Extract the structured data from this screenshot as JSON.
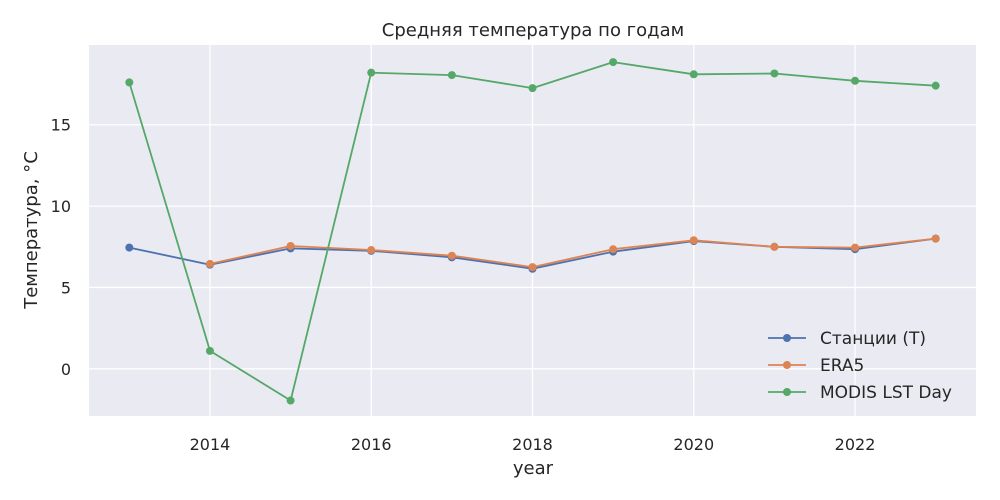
{
  "chart_data": {
    "type": "line",
    "title": "Средняя температура по годам",
    "xlabel": "year",
    "ylabel": "Температура, °C",
    "x": [
      2013,
      2014,
      2015,
      2016,
      2017,
      2018,
      2019,
      2020,
      2021,
      2022,
      2023
    ],
    "xlim": [
      2012.5,
      2023.5
    ],
    "ylim": [
      -2.9,
      19.9
    ],
    "xticks": [
      2014,
      2016,
      2018,
      2020,
      2022
    ],
    "yticks": [
      0,
      5,
      10,
      15
    ],
    "grid": true,
    "legend_position": "bottom-right",
    "background": "#eaeaf2",
    "series": [
      {
        "name": "Станции (T)",
        "color": "#4c72b0",
        "values": [
          7.45,
          6.4,
          7.4,
          7.25,
          6.85,
          6.15,
          7.2,
          7.85,
          7.5,
          7.35,
          8.0
        ]
      },
      {
        "name": "ERA5",
        "color": "#dd8452",
        "values": [
          null,
          6.45,
          7.55,
          7.3,
          6.95,
          6.25,
          7.35,
          7.9,
          7.5,
          7.45,
          8.0
        ]
      },
      {
        "name": "MODIS LST Day",
        "color": "#55a868",
        "values": [
          17.6,
          1.1,
          -1.95,
          18.2,
          18.05,
          17.25,
          18.85,
          18.1,
          18.15,
          17.7,
          17.4
        ]
      }
    ]
  }
}
